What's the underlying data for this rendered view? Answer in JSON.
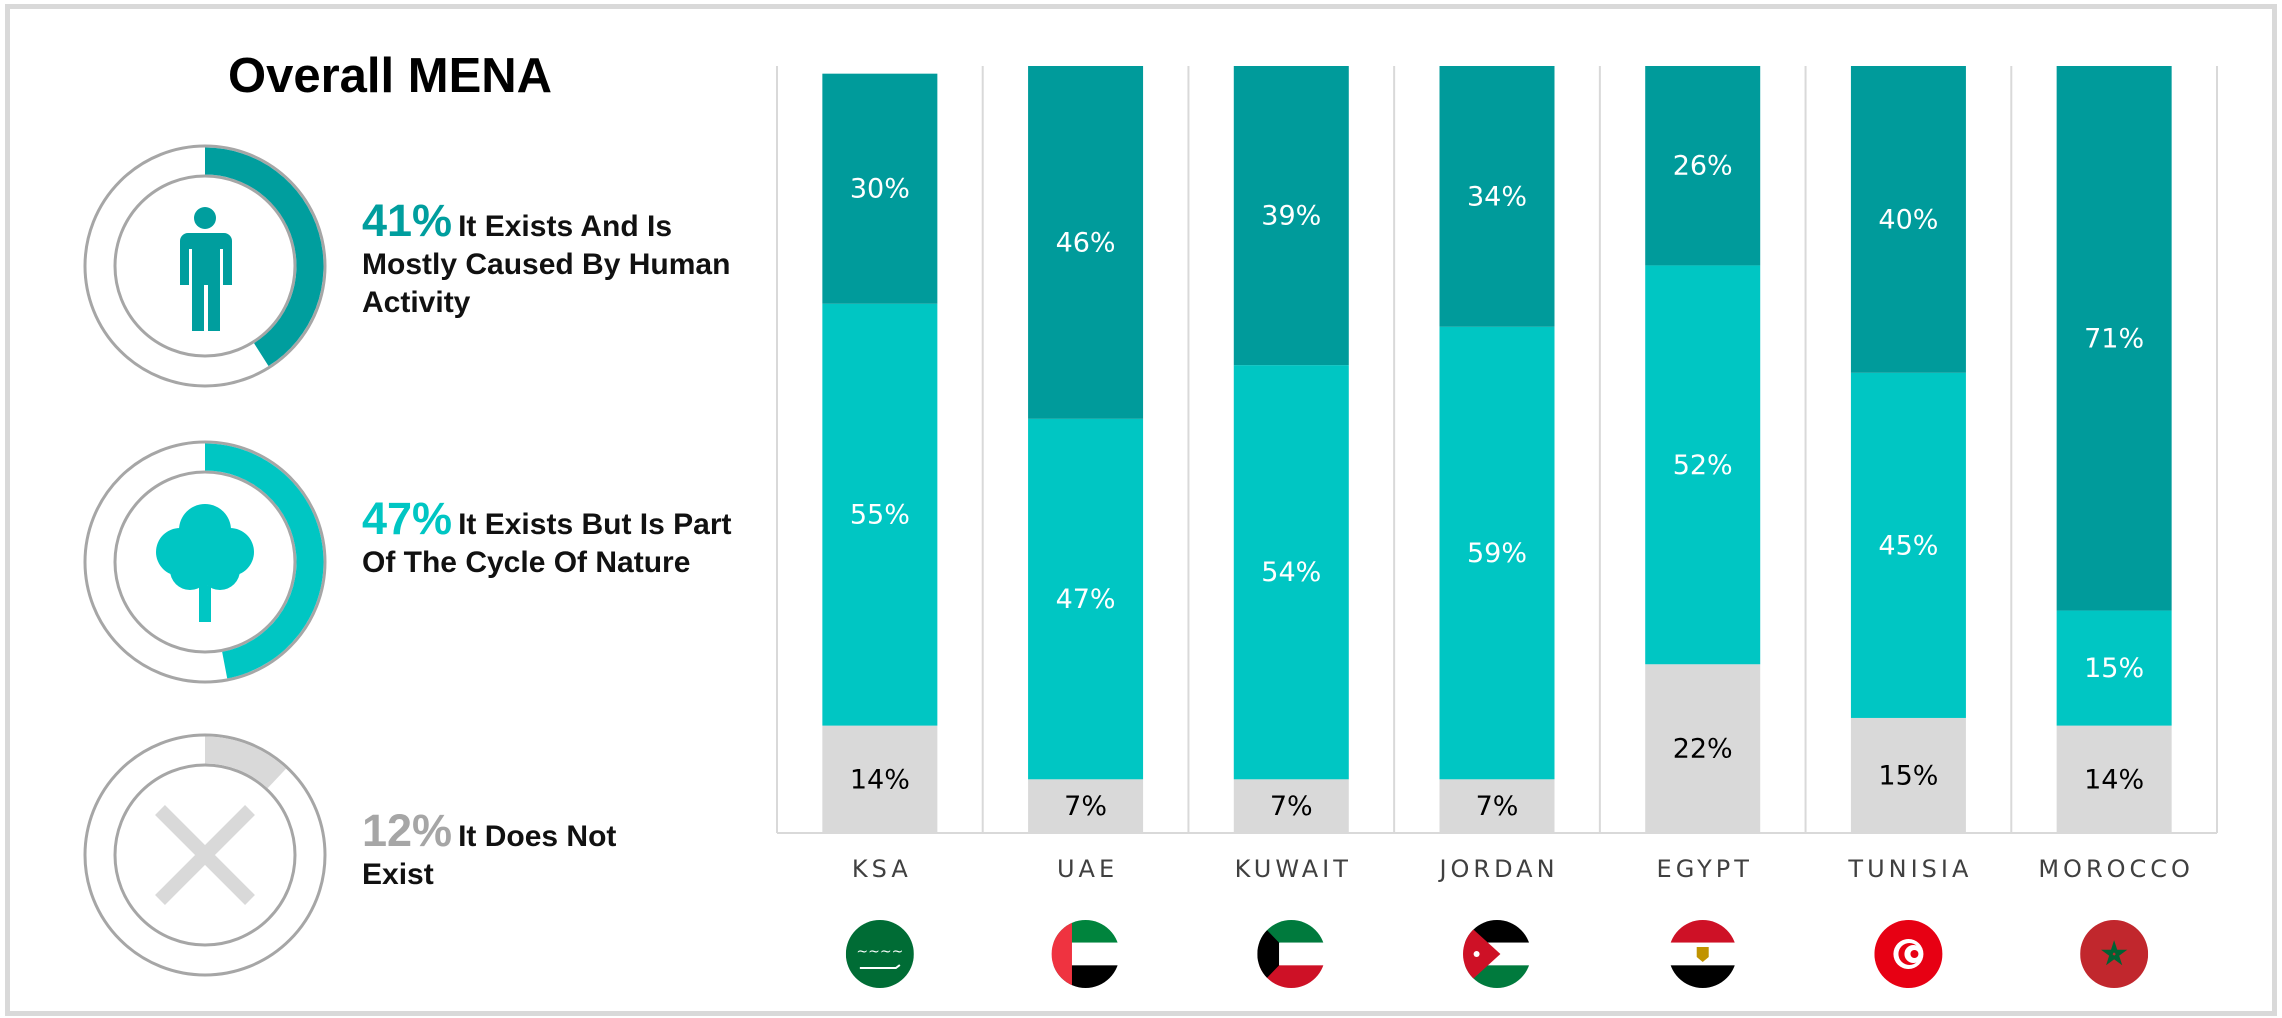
{
  "title": "Overall MENA",
  "summary": [
    {
      "pct": "41%",
      "text": "It Exists And Is Mostly Caused By Human Activity",
      "value": 41,
      "color": "#009e9e",
      "icon": "person-icon"
    },
    {
      "pct": "47%",
      "text": "It Exists But Is Part Of The Cycle Of Nature",
      "value": 47,
      "color": "#00c6c3",
      "icon": "tree-icon"
    },
    {
      "pct": "12%",
      "text": "It Does Not Exist",
      "value": 12,
      "color": "#a6a6a6",
      "icon": "x-icon"
    }
  ],
  "colors": {
    "human": "#009b9b",
    "nature": "#00c6c3",
    "not_exist": "#d9d9d9",
    "ring": "#a6a6a6",
    "grid": "#d9d9d9"
  },
  "chart_data": {
    "type": "bar",
    "stacked": true,
    "categories": [
      "KSA",
      "UAE",
      "KUWAIT",
      "JORDAN",
      "EGYPT",
      "TUNISIA",
      "MOROCCO"
    ],
    "series": [
      {
        "values": [
          14,
          7,
          7,
          7,
          22,
          15,
          14
        ],
        "color": "#d9d9d9"
      },
      {
        "values": [
          55,
          47,
          54,
          59,
          52,
          45,
          15
        ],
        "color": "#00c6c3"
      },
      {
        "values": [
          30,
          46,
          39,
          34,
          26,
          40,
          71
        ],
        "color": "#009b9b"
      }
    ],
    "data_labels": [
      [
        "14%",
        "7%",
        "7%",
        "7%",
        "22%",
        "15%",
        "14%"
      ],
      [
        "55%",
        "47%",
        "54%",
        "59%",
        "52%",
        "45%",
        "15%"
      ],
      [
        "30%",
        "46%",
        "39%",
        "34%",
        "26%",
        "40%",
        "71%"
      ]
    ],
    "ylim": [
      0,
      100
    ],
    "grid": true,
    "flags": [
      "ksa-flag-icon",
      "uae-flag-icon",
      "kuwait-flag-icon",
      "jordan-flag-icon",
      "egypt-flag-icon",
      "tunisia-flag-icon",
      "morocco-flag-icon"
    ]
  }
}
